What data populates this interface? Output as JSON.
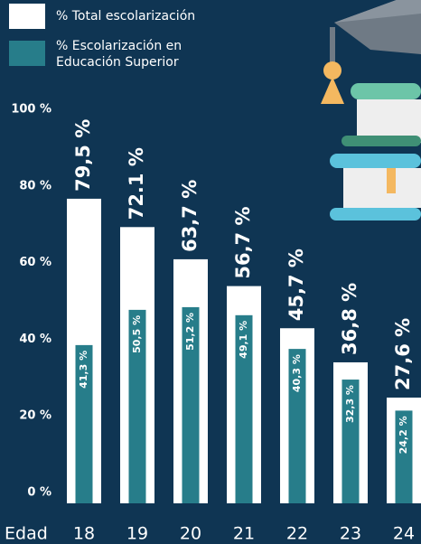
{
  "chart_data": {
    "type": "bar",
    "x_label": "Edad",
    "categories": [
      "18",
      "19",
      "20",
      "21",
      "22",
      "23",
      "24"
    ],
    "series": [
      {
        "name": "% Total escolarización",
        "color": "#ffffff",
        "values": [
          79.5,
          72.1,
          63.7,
          56.7,
          45.7,
          36.8,
          27.6
        ],
        "value_labels": [
          "79,5 %",
          "72.1 %",
          "63,7 %",
          "56,7 %",
          "45,7 %",
          "36,8 %",
          "27,6 %"
        ]
      },
      {
        "name": "% Escolarización en Educación Superior",
        "color": "#277d8a",
        "values": [
          41.3,
          50.5,
          51.2,
          49.1,
          40.3,
          32.3,
          24.2
        ],
        "value_labels": [
          "41,3 %",
          "50,5 %",
          "51,2 %",
          "49,1 %",
          "40,3 %",
          "32,3 %",
          "24,2 %"
        ]
      }
    ],
    "ylim": [
      0,
      100
    ],
    "yticks": [
      {
        "value": 0,
        "label": "0 %"
      },
      {
        "value": 20,
        "label": "20 %"
      },
      {
        "value": 40,
        "label": "40 %"
      },
      {
        "value": 60,
        "label": "60 %"
      },
      {
        "value": 80,
        "label": "80 %"
      },
      {
        "value": 100,
        "label": "100 %"
      }
    ],
    "grid": false
  }
}
